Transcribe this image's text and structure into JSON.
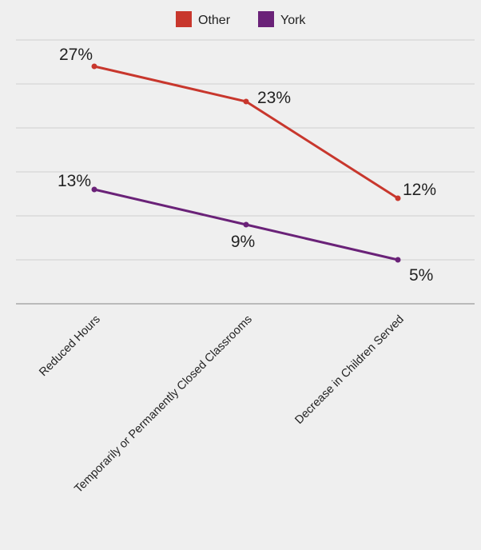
{
  "chart_data": {
    "type": "line",
    "title": "",
    "xlabel": "",
    "ylabel": "",
    "categories": [
      "Reduced Hours",
      "Temporarily or Permanently Closed Classrooms",
      "Decrease in Children Served"
    ],
    "series": [
      {
        "name": "Other",
        "values": [
          27,
          23,
          12
        ],
        "labels": [
          "27%",
          "23%",
          "12%"
        ],
        "color": "#c8372d"
      },
      {
        "name": "York",
        "values": [
          13,
          9,
          5
        ],
        "labels": [
          "13%",
          "9%",
          "5%"
        ],
        "color": "#6a2278"
      }
    ],
    "ylim": [
      0,
      30
    ],
    "grid": true,
    "legend_position": "top-center"
  }
}
